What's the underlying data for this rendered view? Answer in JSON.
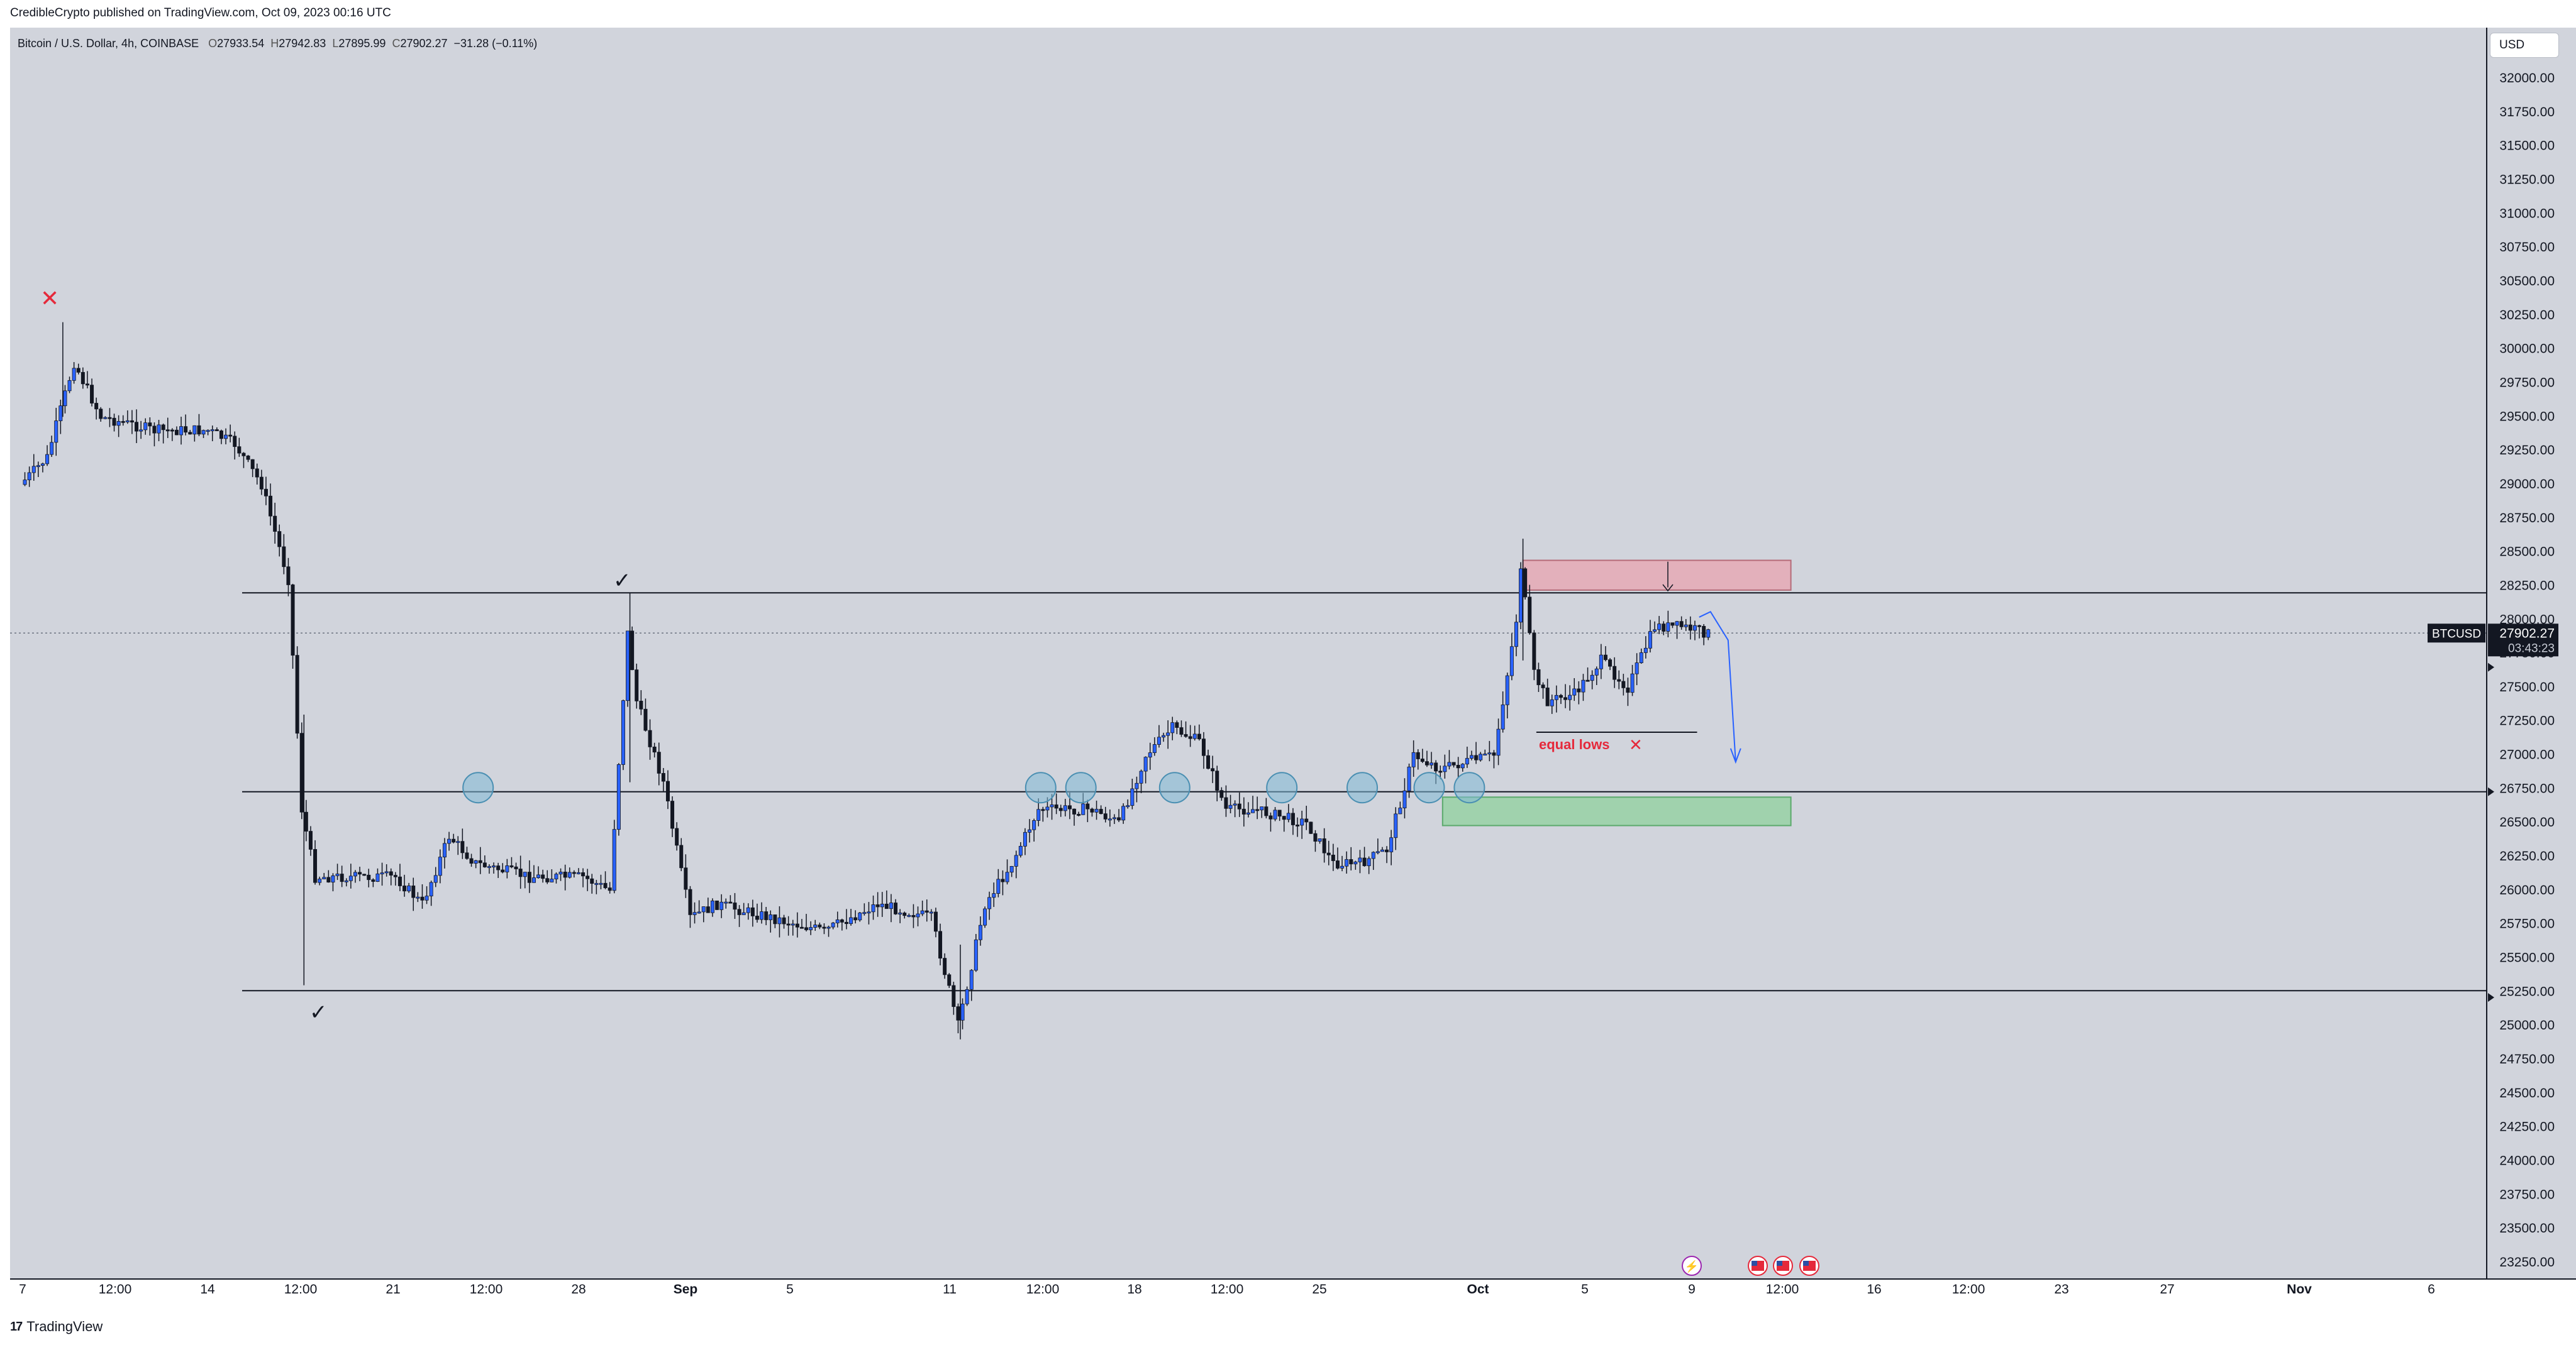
{
  "header": {
    "published_text": "CredibleCrypto published on TradingView.com, Oct 09, 2023 00:16 UTC"
  },
  "symbol_line": {
    "name": "Bitcoin / U.S. Dollar, 4h, COINBASE",
    "o_label": "O",
    "o": "27933.54",
    "h_label": "H",
    "h": "27942.83",
    "l_label": "L",
    "l": "27895.99",
    "c_label": "C",
    "c": "27902.27",
    "change": "−31.28 (−0.11%)"
  },
  "currency_button": "USD",
  "price_tag": {
    "symbol": "BTCUSD",
    "price": "27902.27",
    "countdown": "03:43:23"
  },
  "footer": {
    "brand": "TradingView",
    "logo_glyph": "17"
  },
  "annotations": {
    "equal_lows": "equal lows"
  },
  "colors": {
    "background": "#d1d4dc",
    "candle_up": "#2962ff",
    "candle_down": "#131722",
    "supply_zone": "#e8a4b0",
    "demand_zone": "#8fd19e",
    "circle_fill": "#7fb8d6",
    "label_red": "#e5293b"
  },
  "chart_data": {
    "type": "candlestick",
    "title": "Bitcoin / U.S. Dollar, 4h, COINBASE",
    "ylim": [
      23100,
      32300
    ],
    "y_ticks": [
      "32000.00",
      "31750.00",
      "31500.00",
      "31250.00",
      "31000.00",
      "30750.00",
      "30500.00",
      "30250.00",
      "30000.00",
      "29750.00",
      "29500.00",
      "29250.00",
      "29000.00",
      "28750.00",
      "28500.00",
      "28250.00",
      "28000.00",
      "27750.00",
      "27500.00",
      "27250.00",
      "27000.00",
      "26750.00",
      "26500.00",
      "26250.00",
      "26000.00",
      "25750.00",
      "25500.00",
      "25250.00",
      "25000.00",
      "24750.00",
      "24500.00",
      "24250.00",
      "24000.00",
      "23750.00",
      "23500.00",
      "23250.00"
    ],
    "x_ticks": [
      "7",
      "12:00",
      "14",
      "12:00",
      "21",
      "12:00",
      "28",
      "Sep",
      "5",
      "11",
      "12:00",
      "18",
      "12:00",
      "25",
      "Oct",
      "5",
      "9",
      "12:00",
      "16",
      "12:00",
      "23",
      "27",
      "Nov",
      "6"
    ],
    "bold_x_ticks": [
      "Sep",
      "Oct",
      "Nov"
    ],
    "x_range": [
      "Aug 7, 2023",
      "Nov 7, 2023"
    ],
    "current_price": 27902.27,
    "horizontal_levels": [
      28200,
      26730,
      25260
    ],
    "supply_zone": {
      "from": "Oct 2, 2023",
      "to": "Oct 12, 2023",
      "low": 28220,
      "high": 28440
    },
    "demand_zone": {
      "from": "Sep 29, 2023",
      "to": "Oct 12, 2023",
      "low": 26480,
      "high": 26690
    },
    "equal_lows_level": 27170,
    "swing_path": [
      [
        "Aug 7, 2023",
        29000
      ],
      [
        "Aug 8, 2023",
        29200
      ],
      [
        "Aug 9, 2023",
        29900
      ],
      [
        "Aug 10, 2023",
        29500
      ],
      [
        "Aug 12, 2023",
        29400
      ],
      [
        "Aug 14, 2023",
        29400
      ],
      [
        "Aug 15, 2023",
        29300
      ],
      [
        "Aug 16, 2023",
        29000
      ],
      [
        "Aug 17, 2023",
        28300
      ],
      [
        "Aug 17, 2023 12:00",
        26600
      ],
      [
        "Aug 18, 2023",
        26100
      ],
      [
        "Aug 19, 2023",
        26100
      ],
      [
        "Aug 21, 2023",
        26100
      ],
      [
        "Aug 22, 2023",
        25900
      ],
      [
        "Aug 23, 2023",
        26400
      ],
      [
        "Aug 24, 2023",
        26200
      ],
      [
        "Aug 26, 2023",
        26100
      ],
      [
        "Aug 28, 2023",
        26100
      ],
      [
        "Aug 29, 2023",
        26000
      ],
      [
        "Aug 29, 2023 16:00",
        27900
      ],
      [
        "Aug 30, 2023",
        27400
      ],
      [
        "Aug 31, 2023",
        26800
      ],
      [
        "Sep 1, 2023",
        25800
      ],
      [
        "Sep 2, 2023",
        25900
      ],
      [
        "Sep 4, 2023",
        25800
      ],
      [
        "Sep 6, 2023",
        25700
      ],
      [
        "Sep 8, 2023",
        25900
      ],
      [
        "Sep 10, 2023",
        25800
      ],
      [
        "Sep 11, 2023",
        25000
      ],
      [
        "Sep 12, 2023",
        25900
      ],
      [
        "Sep 13, 2023",
        26200
      ],
      [
        "Sep 14, 2023",
        26600
      ],
      [
        "Sep 15, 2023",
        26600
      ],
      [
        "Sep 16, 2023",
        26600
      ],
      [
        "Sep 17, 2023",
        26500
      ],
      [
        "Sep 18, 2023",
        27000
      ],
      [
        "Sep 19, 2023",
        27200
      ],
      [
        "Sep 20, 2023",
        27100
      ],
      [
        "Sep 21, 2023",
        26600
      ],
      [
        "Sep 22, 2023",
        26600
      ],
      [
        "Sep 24, 2023",
        26500
      ],
      [
        "Sep 25, 2023",
        26200
      ],
      [
        "Sep 26, 2023",
        26200
      ],
      [
        "Sep 27, 2023",
        26300
      ],
      [
        "Sep 28, 2023",
        27000
      ],
      [
        "Sep 29, 2023",
        26900
      ],
      [
        "Sep 30, 2023",
        26950
      ],
      [
        "Oct 1, 2023",
        27000
      ],
      [
        "Oct 1, 2023 20:00",
        28000
      ],
      [
        "Oct 2, 2023",
        28400
      ],
      [
        "Oct 2, 2023 12:00",
        27600
      ],
      [
        "Oct 3, 2023",
        27400
      ],
      [
        "Oct 4, 2023",
        27450
      ],
      [
        "Oct 5, 2023",
        27700
      ],
      [
        "Oct 6, 2023",
        27500
      ],
      [
        "Oct 7, 2023",
        27950
      ],
      [
        "Oct 8, 2023",
        27950
      ],
      [
        "Oct 9, 2023",
        27902
      ]
    ]
  }
}
